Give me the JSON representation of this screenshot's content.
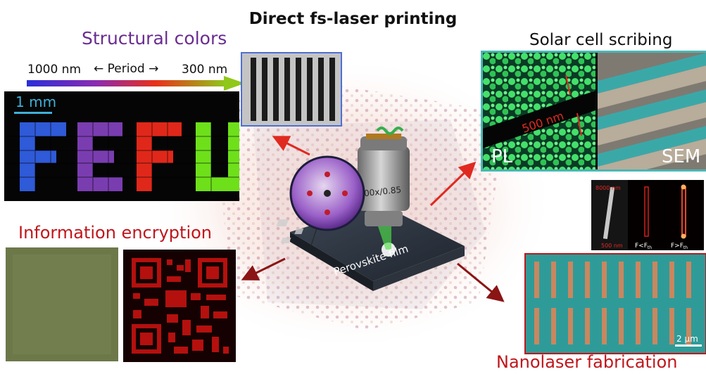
{
  "title": "Direct fs-laser printing",
  "structural_colors": {
    "heading": "Structural colors",
    "scale_left": "1000 nm",
    "scale_mid": "Period",
    "scale_right": "300 nm",
    "scalebar": "1 mm",
    "letters": [
      "F",
      "E",
      "F",
      "U"
    ]
  },
  "solar": {
    "heading": "Solar cell scribing",
    "pl_label": "PL",
    "sem_label": "SEM",
    "gap_label": "500 nm"
  },
  "encryption": {
    "heading": "Information encryption"
  },
  "nanolaser": {
    "heading": "Nanolaser fabrication",
    "scalebar": "2 μm",
    "length_label": "8000 nm",
    "width_label": "500 nm",
    "below_threshold": "F<F",
    "above_threshold": "F>F",
    "threshold_sub": "th"
  },
  "center": {
    "objective_label": "100x/0.85",
    "film_label": "Perovskite film"
  },
  "colors": {
    "structural_heading": "#6a2c91",
    "red_heading": "#c0161c",
    "frame_blue": "#4f6fd6",
    "frame_teal": "#49b7b5",
    "frame_red": "#c0161c",
    "arrow_red": "#e02a20",
    "arrow_dark_red": "#8b1414"
  }
}
